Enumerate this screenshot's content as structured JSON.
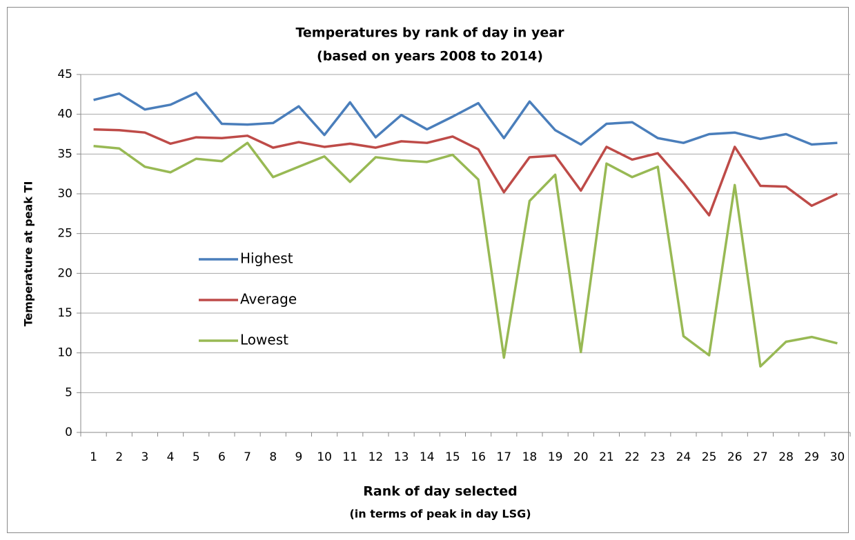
{
  "chart_data": {
    "type": "line",
    "title": "Temperatures by rank of day in year",
    "subtitle": "(based on years 2008 to 2014)",
    "y_label": "Temperature at peak TI",
    "x_label": "Rank of day selected",
    "x_sublabel": "(in terms of peak in day LSG)",
    "categories": [
      1,
      2,
      3,
      4,
      5,
      6,
      7,
      8,
      9,
      10,
      11,
      12,
      13,
      14,
      15,
      16,
      17,
      18,
      19,
      20,
      21,
      22,
      23,
      24,
      25,
      26,
      27,
      28,
      29,
      30
    ],
    "series": [
      {
        "name": "Highest",
        "color": "#4a7ebb",
        "values": [
          41.8,
          42.6,
          40.6,
          41.2,
          42.7,
          38.8,
          38.7,
          38.9,
          41.0,
          37.4,
          41.5,
          37.1,
          39.9,
          38.1,
          39.7,
          41.4,
          37.0,
          41.6,
          38.0,
          36.2,
          38.8,
          39.0,
          37.0,
          36.4,
          37.5,
          37.7,
          36.9,
          37.5,
          36.2,
          36.4
        ]
      },
      {
        "name": "Average",
        "color": "#be4b48",
        "values": [
          38.1,
          38.0,
          37.7,
          36.3,
          37.1,
          37.0,
          37.3,
          35.8,
          36.5,
          35.9,
          36.3,
          35.8,
          36.6,
          36.4,
          37.2,
          35.6,
          30.2,
          34.6,
          34.8,
          30.4,
          35.9,
          34.3,
          35.1,
          31.4,
          27.3,
          35.9,
          31.0,
          30.9,
          28.5,
          30.0
        ]
      },
      {
        "name": "Lowest",
        "color": "#98b954",
        "values": [
          36.0,
          35.7,
          33.4,
          32.7,
          34.4,
          34.1,
          36.4,
          32.1,
          33.4,
          34.7,
          31.5,
          34.6,
          34.2,
          34.0,
          34.9,
          31.8,
          9.4,
          29.1,
          32.4,
          10.1,
          33.8,
          32.1,
          33.4,
          12.1,
          9.7,
          31.1,
          8.3,
          11.4,
          12.0,
          11.2
        ]
      }
    ],
    "ylim": [
      0,
      45
    ],
    "yticks": [
      0,
      5,
      10,
      15,
      20,
      25,
      30,
      35,
      40,
      45
    ],
    "grid": true,
    "legend": "center-left"
  }
}
